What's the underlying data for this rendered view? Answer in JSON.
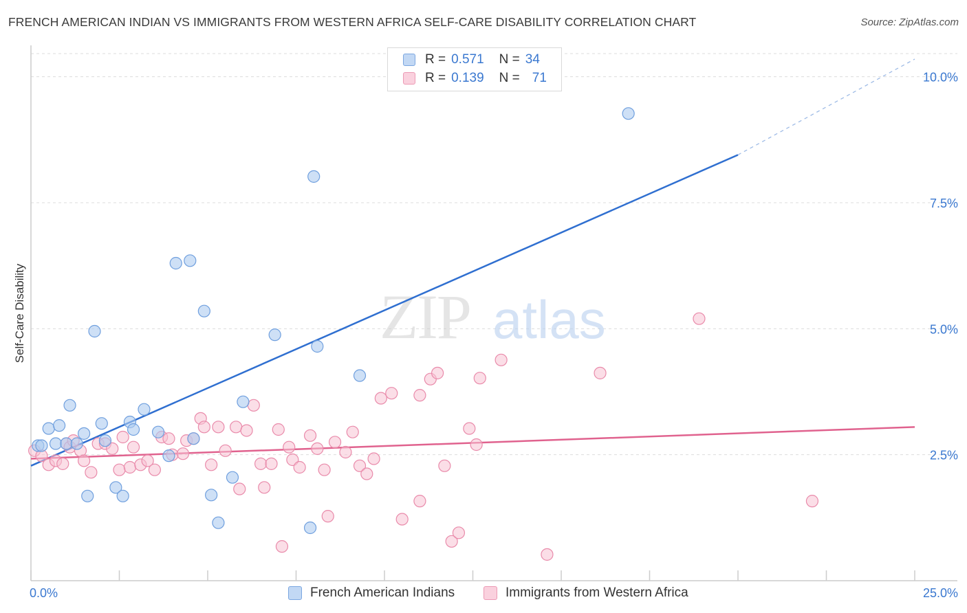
{
  "title": "FRENCH AMERICAN INDIAN VS IMMIGRANTS FROM WESTERN AFRICA SELF-CARE DISABILITY CORRELATION CHART",
  "source": "Source: ZipAtlas.com",
  "watermark": {
    "zip": "ZIP",
    "atlas": "atlas"
  },
  "legend": {
    "r_label": "R =",
    "n_label": "N =",
    "rows": [
      {
        "r": "0.571",
        "n": "34"
      },
      {
        "r": "0.139",
        "n": "71"
      }
    ]
  },
  "colors": {
    "blue_fill": "#aecbf0",
    "blue_stroke": "#6f9fde",
    "blue_line": "#2f6fd0",
    "pink_fill": "#f8c3d3",
    "pink_stroke": "#e98aaa",
    "pink_line": "#e0628e",
    "tick_label": "#3a78d0",
    "grid": "#dcdcdc"
  },
  "chart_data": {
    "type": "scatter",
    "title": "FRENCH AMERICAN INDIAN VS IMMIGRANTS FROM WESTERN AFRICA SELF-CARE DISABILITY CORRELATION CHART",
    "xlabel": "",
    "ylabel": "Self-Care Disability",
    "xlim": [
      0,
      25
    ],
    "ylim": [
      0,
      10.5
    ],
    "x_tick_labels": [
      "0.0%",
      "25.0%"
    ],
    "y_ticks": [
      2.5,
      5.0,
      7.5,
      10.0
    ],
    "y_tick_labels": [
      "2.5%",
      "5.0%",
      "7.5%",
      "10.0%"
    ],
    "grid": true,
    "legend_position": "top-center",
    "series": [
      {
        "name": "French American Indians",
        "color": "blue",
        "r": 0.571,
        "n": 34,
        "trend": {
          "x0": 0,
          "y0": 2.28,
          "x1": 20,
          "y1": 8.45,
          "dashed_to_x": 25,
          "dashed_to_y": 10.35
        },
        "points": [
          [
            0.2,
            2.68
          ],
          [
            0.3,
            2.68
          ],
          [
            0.5,
            3.02
          ],
          [
            0.7,
            2.72
          ],
          [
            0.8,
            3.08
          ],
          [
            1.0,
            2.72
          ],
          [
            1.1,
            3.48
          ],
          [
            1.3,
            2.72
          ],
          [
            1.5,
            2.92
          ],
          [
            1.6,
            1.68
          ],
          [
            1.8,
            4.95
          ],
          [
            2.0,
            3.12
          ],
          [
            2.1,
            2.78
          ],
          [
            2.4,
            1.85
          ],
          [
            2.6,
            1.68
          ],
          [
            2.8,
            3.15
          ],
          [
            2.9,
            3.0
          ],
          [
            3.2,
            3.4
          ],
          [
            3.6,
            2.95
          ],
          [
            3.9,
            2.48
          ],
          [
            4.1,
            6.3
          ],
          [
            4.5,
            6.35
          ],
          [
            4.6,
            2.82
          ],
          [
            4.9,
            5.35
          ],
          [
            5.1,
            1.7
          ],
          [
            5.3,
            1.15
          ],
          [
            5.7,
            2.05
          ],
          [
            6.0,
            3.55
          ],
          [
            6.9,
            4.88
          ],
          [
            7.9,
            1.05
          ],
          [
            8.0,
            8.02
          ],
          [
            8.1,
            4.65
          ],
          [
            9.3,
            4.07
          ],
          [
            16.9,
            9.27
          ]
        ]
      },
      {
        "name": "Immigrants from Western Africa",
        "color": "pink",
        "r": 0.139,
        "n": 71,
        "trend": {
          "x0": 0,
          "y0": 2.42,
          "x1": 25,
          "y1": 3.05
        },
        "points": [
          [
            0.1,
            2.58
          ],
          [
            0.3,
            2.48
          ],
          [
            0.5,
            2.3
          ],
          [
            0.7,
            2.38
          ],
          [
            0.9,
            2.32
          ],
          [
            1.0,
            2.72
          ],
          [
            1.1,
            2.65
          ],
          [
            1.2,
            2.78
          ],
          [
            1.4,
            2.58
          ],
          [
            1.5,
            2.38
          ],
          [
            1.7,
            2.15
          ],
          [
            1.9,
            2.72
          ],
          [
            2.1,
            2.72
          ],
          [
            2.3,
            2.62
          ],
          [
            2.5,
            2.2
          ],
          [
            2.6,
            2.85
          ],
          [
            2.8,
            2.25
          ],
          [
            2.9,
            2.65
          ],
          [
            3.1,
            2.3
          ],
          [
            3.3,
            2.38
          ],
          [
            3.5,
            2.2
          ],
          [
            3.7,
            2.85
          ],
          [
            3.9,
            2.82
          ],
          [
            4.0,
            2.5
          ],
          [
            4.3,
            2.52
          ],
          [
            4.4,
            2.78
          ],
          [
            4.6,
            2.82
          ],
          [
            4.8,
            3.22
          ],
          [
            4.9,
            3.05
          ],
          [
            5.1,
            2.3
          ],
          [
            5.3,
            3.05
          ],
          [
            5.5,
            2.58
          ],
          [
            5.8,
            3.05
          ],
          [
            5.9,
            1.82
          ],
          [
            6.1,
            2.98
          ],
          [
            6.3,
            3.48
          ],
          [
            6.5,
            2.32
          ],
          [
            6.6,
            1.85
          ],
          [
            6.8,
            2.32
          ],
          [
            7.0,
            3.0
          ],
          [
            7.1,
            0.68
          ],
          [
            7.3,
            2.65
          ],
          [
            7.4,
            2.4
          ],
          [
            7.6,
            2.25
          ],
          [
            7.9,
            2.88
          ],
          [
            8.1,
            2.62
          ],
          [
            8.3,
            2.2
          ],
          [
            8.4,
            1.28
          ],
          [
            8.6,
            2.75
          ],
          [
            8.9,
            2.55
          ],
          [
            9.1,
            2.95
          ],
          [
            9.3,
            2.28
          ],
          [
            9.5,
            2.12
          ],
          [
            9.7,
            2.42
          ],
          [
            9.9,
            3.62
          ],
          [
            10.2,
            3.72
          ],
          [
            10.5,
            1.22
          ],
          [
            11.0,
            1.58
          ],
          [
            11.0,
            3.68
          ],
          [
            11.3,
            4.0
          ],
          [
            11.5,
            4.12
          ],
          [
            11.7,
            2.28
          ],
          [
            11.9,
            0.78
          ],
          [
            12.1,
            0.95
          ],
          [
            12.4,
            3.02
          ],
          [
            12.6,
            2.7
          ],
          [
            12.7,
            4.02
          ],
          [
            13.3,
            4.38
          ],
          [
            14.6,
            0.52
          ],
          [
            16.1,
            4.12
          ],
          [
            18.9,
            5.2
          ],
          [
            22.1,
            1.58
          ]
        ]
      }
    ]
  }
}
